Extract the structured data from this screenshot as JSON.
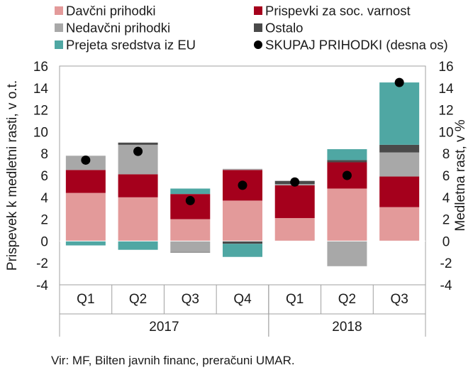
{
  "chart_data": {
    "type": "bar",
    "stacked": true,
    "categories": [
      "Q1",
      "Q2",
      "Q3",
      "Q4",
      "Q1",
      "Q2",
      "Q3"
    ],
    "groups": [
      {
        "label": "2017",
        "count": 4
      },
      {
        "label": "2018",
        "count": 3
      }
    ],
    "ylabel": "Prispevek k medletni rasti, v o.t.",
    "y2label": "Medletna rast, v %",
    "ylim": [
      -4,
      16
    ],
    "y2lim": [
      -4,
      16
    ],
    "yticks": [
      -4,
      -2,
      0,
      2,
      4,
      6,
      8,
      10,
      12,
      14,
      16
    ],
    "y2ticks": [
      -4,
      -2,
      0,
      2,
      4,
      6,
      8,
      10,
      12,
      14,
      16
    ],
    "grid": false,
    "legend_position": "top",
    "series": [
      {
        "name": "Davčni prihodki",
        "color": "#e39a9a",
        "values": [
          4.4,
          4.0,
          2.0,
          3.7,
          2.1,
          4.8,
          3.1
        ]
      },
      {
        "name": "Prispevki za soc. varnost",
        "color": "#a5001c",
        "values": [
          2.1,
          2.1,
          2.3,
          2.8,
          3.0,
          2.4,
          2.8
        ]
      },
      {
        "name": "Nedavčni prihodki",
        "color": "#a8a8a8",
        "values": [
          1.3,
          2.7,
          -1.0,
          0.1,
          0.1,
          -2.3,
          2.2
        ]
      },
      {
        "name": "Ostalo",
        "color": "#4a4a4a",
        "values": [
          0.0,
          0.2,
          -0.05,
          -0.25,
          0.3,
          0.2,
          0.7
        ]
      },
      {
        "name": "Prejeta sredstva iz EU",
        "color": "#4fa7a3",
        "values": [
          -0.4,
          -0.8,
          0.5,
          -1.2,
          0.0,
          1.0,
          5.7
        ]
      }
    ],
    "line_series": {
      "name": "SKUPAJ PRIHODKI (desna os)",
      "axis": "right",
      "color": "#000000",
      "values": [
        7.4,
        8.2,
        3.7,
        5.1,
        5.4,
        6.0,
        14.5
      ]
    }
  },
  "source": "Vir: MF, Bilten javnih financ, preračuni UMAR."
}
